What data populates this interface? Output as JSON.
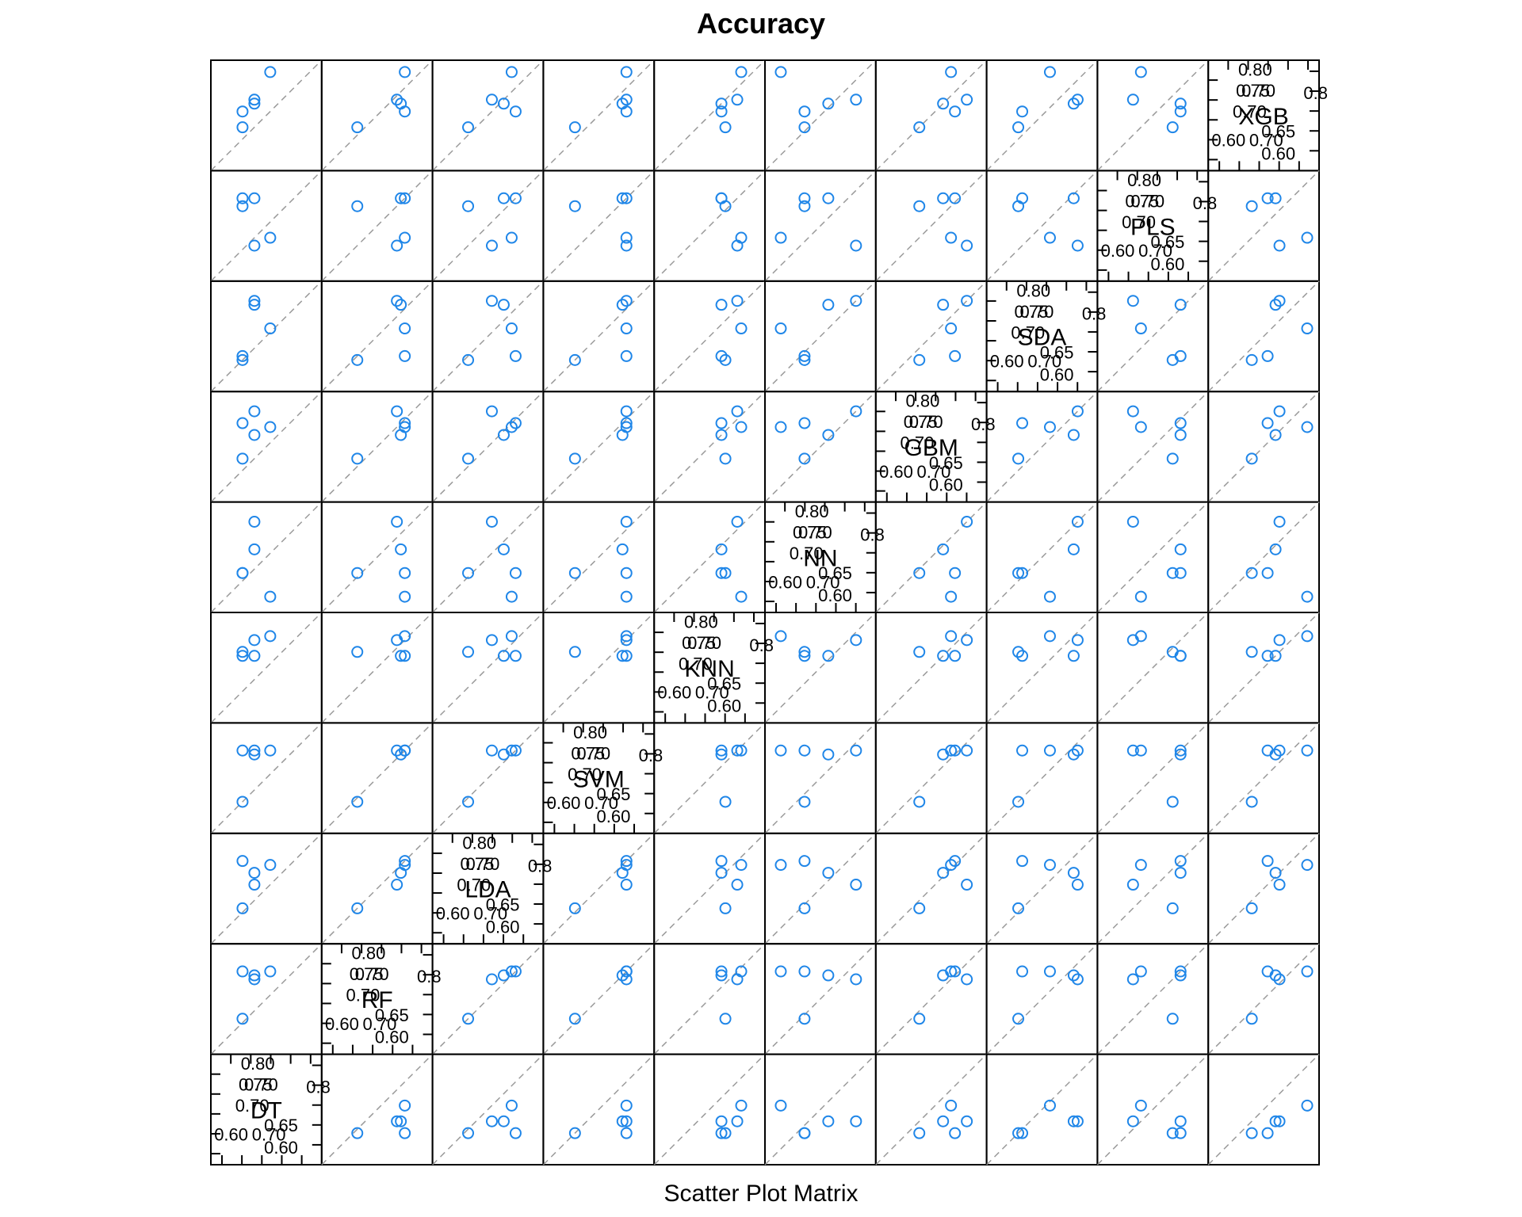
{
  "chart_data": {
    "type": "scatter",
    "title": "Accuracy",
    "xlabel": "Scatter Plot Matrix",
    "variables": [
      "DT",
      "RF",
      "LDA",
      "SVM",
      "KNN",
      "NN",
      "GBM",
      "SDA",
      "PLS",
      "XGB"
    ],
    "diagonal_ticks": {
      "upper": [
        "0.80",
        "0.75",
        "0.70"
      ],
      "lower": [
        "0.60",
        "0.65",
        "0.70"
      ],
      "upper_extra": "0.8",
      "lower_extra": "0.60"
    },
    "axis_range": [
      0.55,
      0.83
    ],
    "grid": false,
    "reference_line": "y = x (dashed)",
    "point_color": "#1f86e8",
    "observations": {
      "DT": [
        0.63,
        0.66,
        0.66,
        0.7,
        0.63
      ],
      "RF": [
        0.64,
        0.75,
        0.74,
        0.76,
        0.76
      ],
      "LDA": [
        0.64,
        0.73,
        0.7,
        0.75,
        0.76
      ],
      "SVM": [
        0.63,
        0.75,
        0.76,
        0.76,
        0.76
      ],
      "KNN": [
        0.73,
        0.72,
        0.76,
        0.77,
        0.72
      ],
      "NN": [
        0.65,
        0.71,
        0.78,
        0.59,
        0.65
      ],
      "GBM": [
        0.66,
        0.72,
        0.78,
        0.74,
        0.75
      ],
      "SDA": [
        0.63,
        0.77,
        0.78,
        0.71,
        0.64
      ],
      "PLS": [
        0.74,
        0.76,
        0.64,
        0.66,
        0.76
      ],
      "XGB": [
        0.66,
        0.72,
        0.73,
        0.8,
        0.7
      ]
    }
  }
}
